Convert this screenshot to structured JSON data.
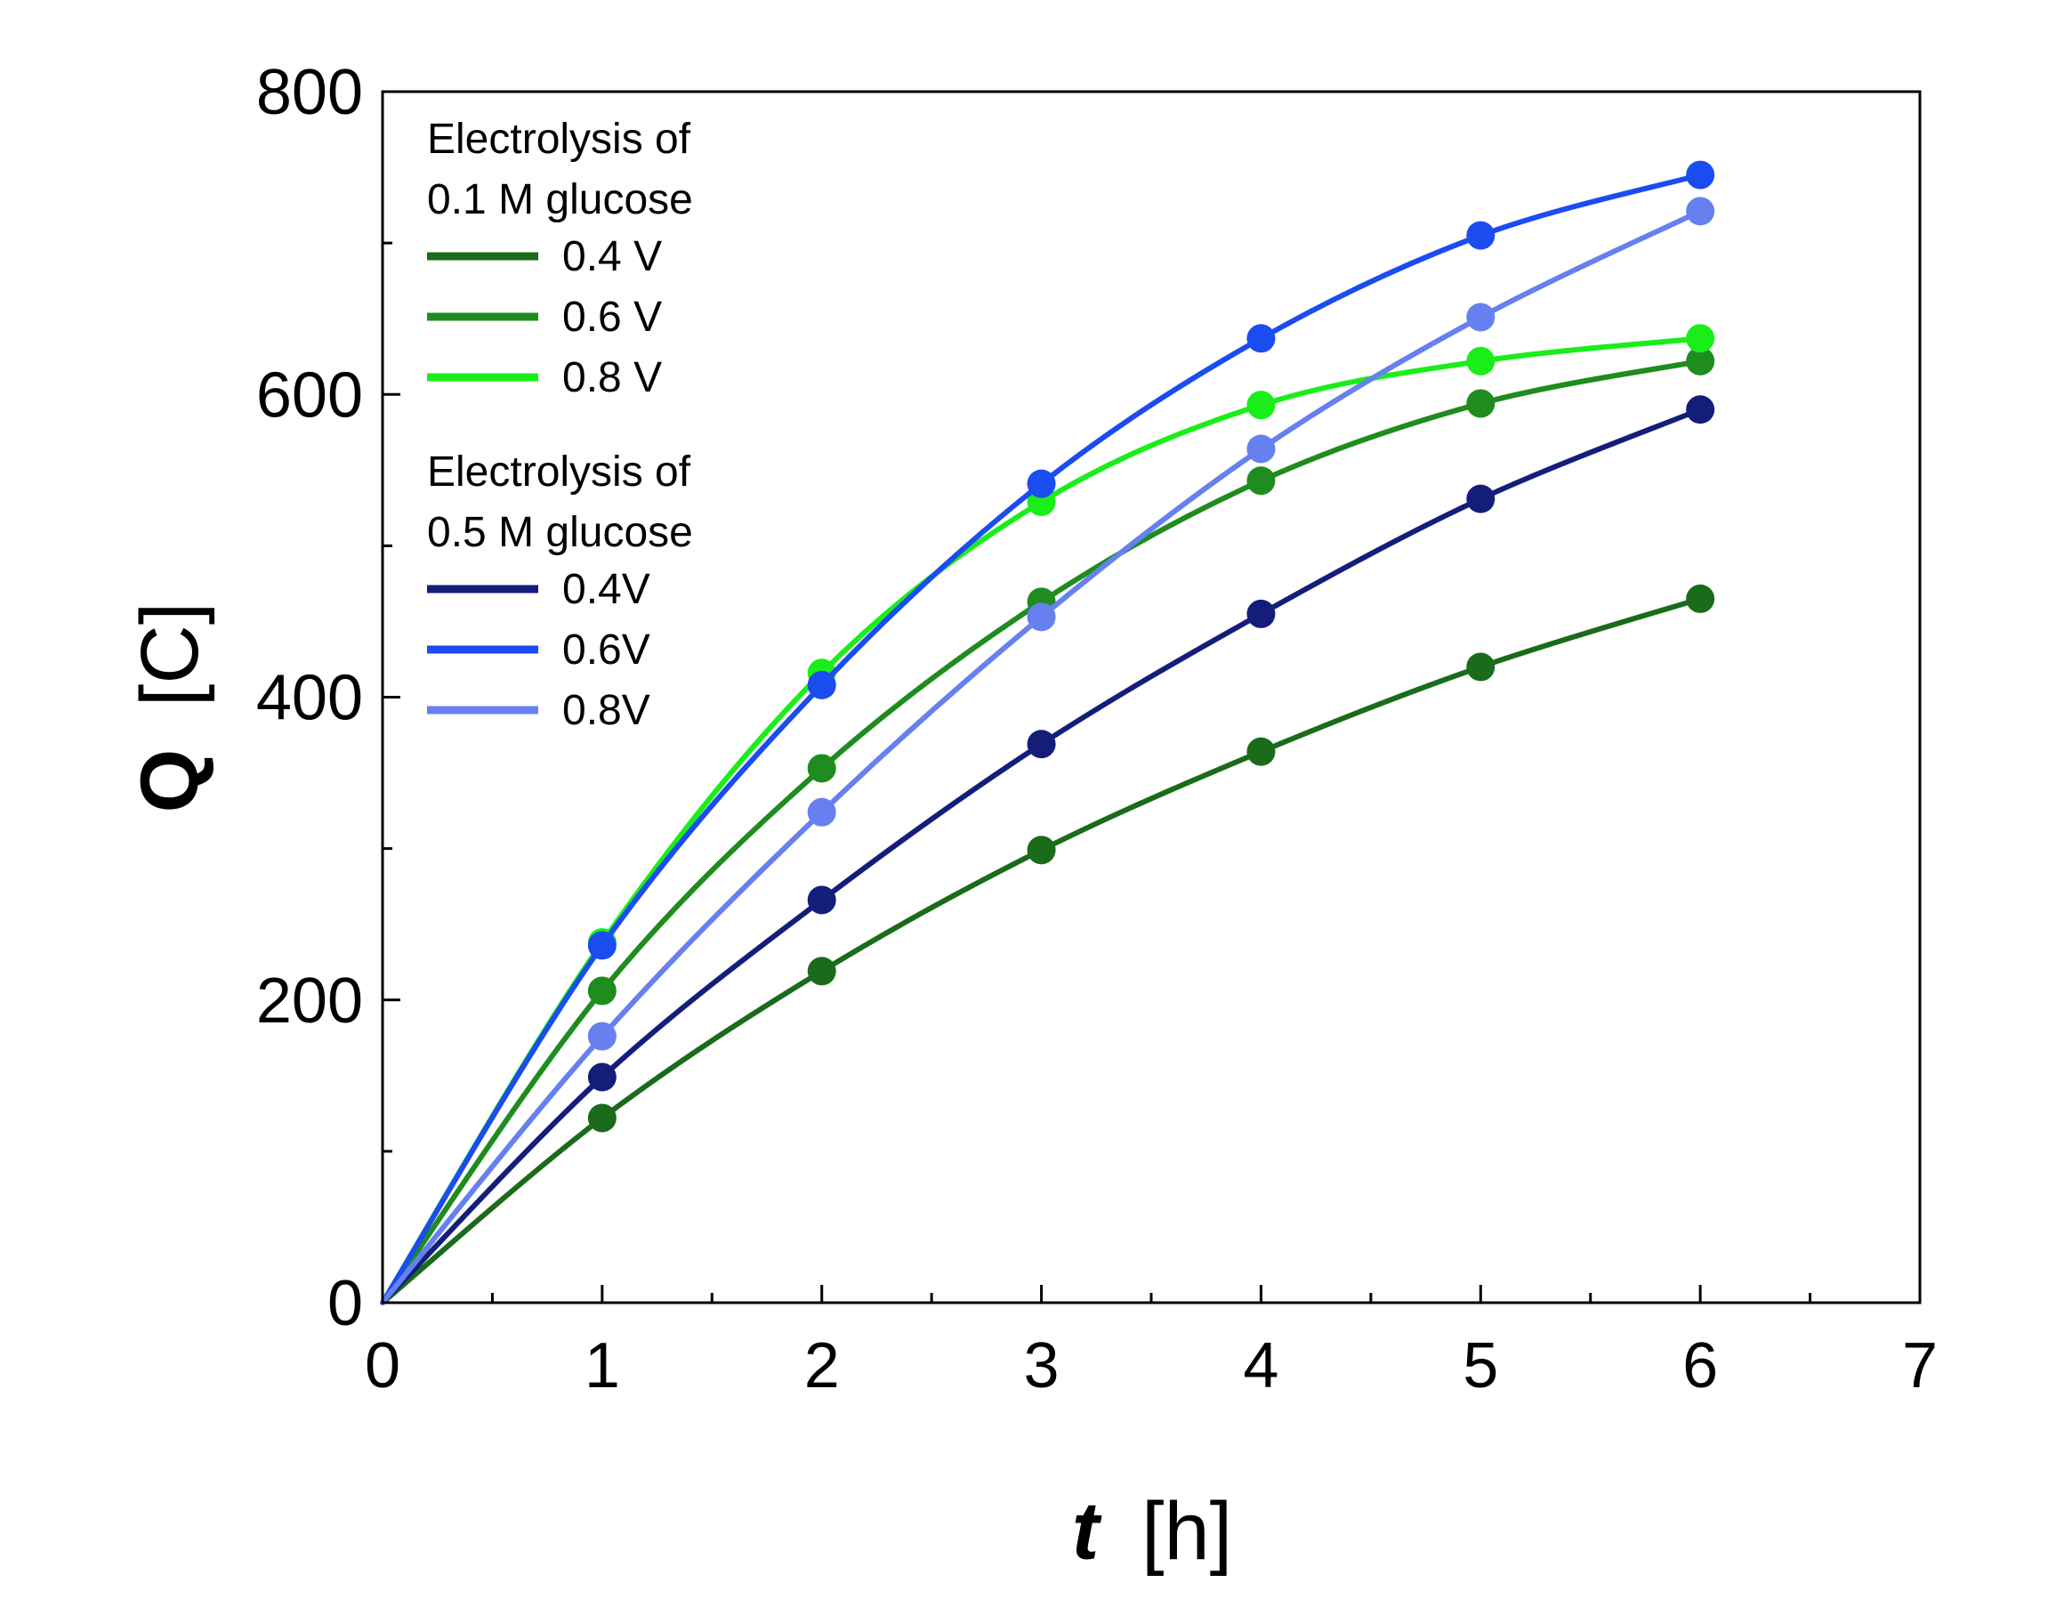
{
  "chart_data": {
    "type": "line",
    "title": "",
    "xlabel": {
      "symbol": "t",
      "unit": "[h]"
    },
    "ylabel": {
      "symbol": "Q",
      "unit": "[C]"
    },
    "xlim": [
      0,
      7
    ],
    "ylim": [
      0,
      800
    ],
    "xticks": [
      0,
      1,
      2,
      3,
      4,
      5,
      6,
      7
    ],
    "yticks": [
      0,
      200,
      400,
      600,
      800
    ],
    "x_minor_step": 0.5,
    "y_minor_step": 100,
    "grid": false,
    "legend_position": "top-left",
    "legend_groups": [
      {
        "title_lines": [
          "Electrolysis of",
          "0.1 M glucose"
        ],
        "series_indices": [
          0,
          1,
          2
        ]
      },
      {
        "title_lines": [
          "Electrolysis of",
          "0.5 M glucose"
        ],
        "series_indices": [
          3,
          4,
          5
        ]
      }
    ],
    "series": [
      {
        "name": "0.4 V",
        "color": "#1a6b1a",
        "x": [
          0,
          1,
          2,
          3,
          4,
          5,
          6
        ],
        "values": [
          0,
          122,
          219,
          299,
          364,
          420,
          465
        ]
      },
      {
        "name": "0.6 V",
        "color": "#1e8c1e",
        "x": [
          0,
          1,
          2,
          3,
          4,
          5,
          6
        ],
        "values": [
          0,
          206,
          353,
          463,
          543,
          594,
          622
        ]
      },
      {
        "name": "0.8 V",
        "color": "#1aee1a",
        "x": [
          0,
          1,
          2,
          3,
          4,
          5,
          6
        ],
        "values": [
          0,
          238,
          416,
          529,
          593,
          622,
          637
        ]
      },
      {
        "name": "0.4V",
        "color": "#141e7a",
        "x": [
          0,
          1,
          2,
          3,
          4,
          5,
          6
        ],
        "values": [
          0,
          149,
          266,
          369,
          455,
          531,
          590
        ]
      },
      {
        "name": "0.6V",
        "color": "#1a4cf0",
        "x": [
          0,
          1,
          2,
          3,
          4,
          5,
          6
        ],
        "values": [
          0,
          236,
          408,
          541,
          637,
          705,
          745
        ]
      },
      {
        "name": "0.8V",
        "color": "#6680f0",
        "x": [
          0,
          1,
          2,
          3,
          4,
          5,
          6
        ],
        "values": [
          0,
          176,
          324,
          453,
          564,
          651,
          721
        ]
      }
    ]
  }
}
